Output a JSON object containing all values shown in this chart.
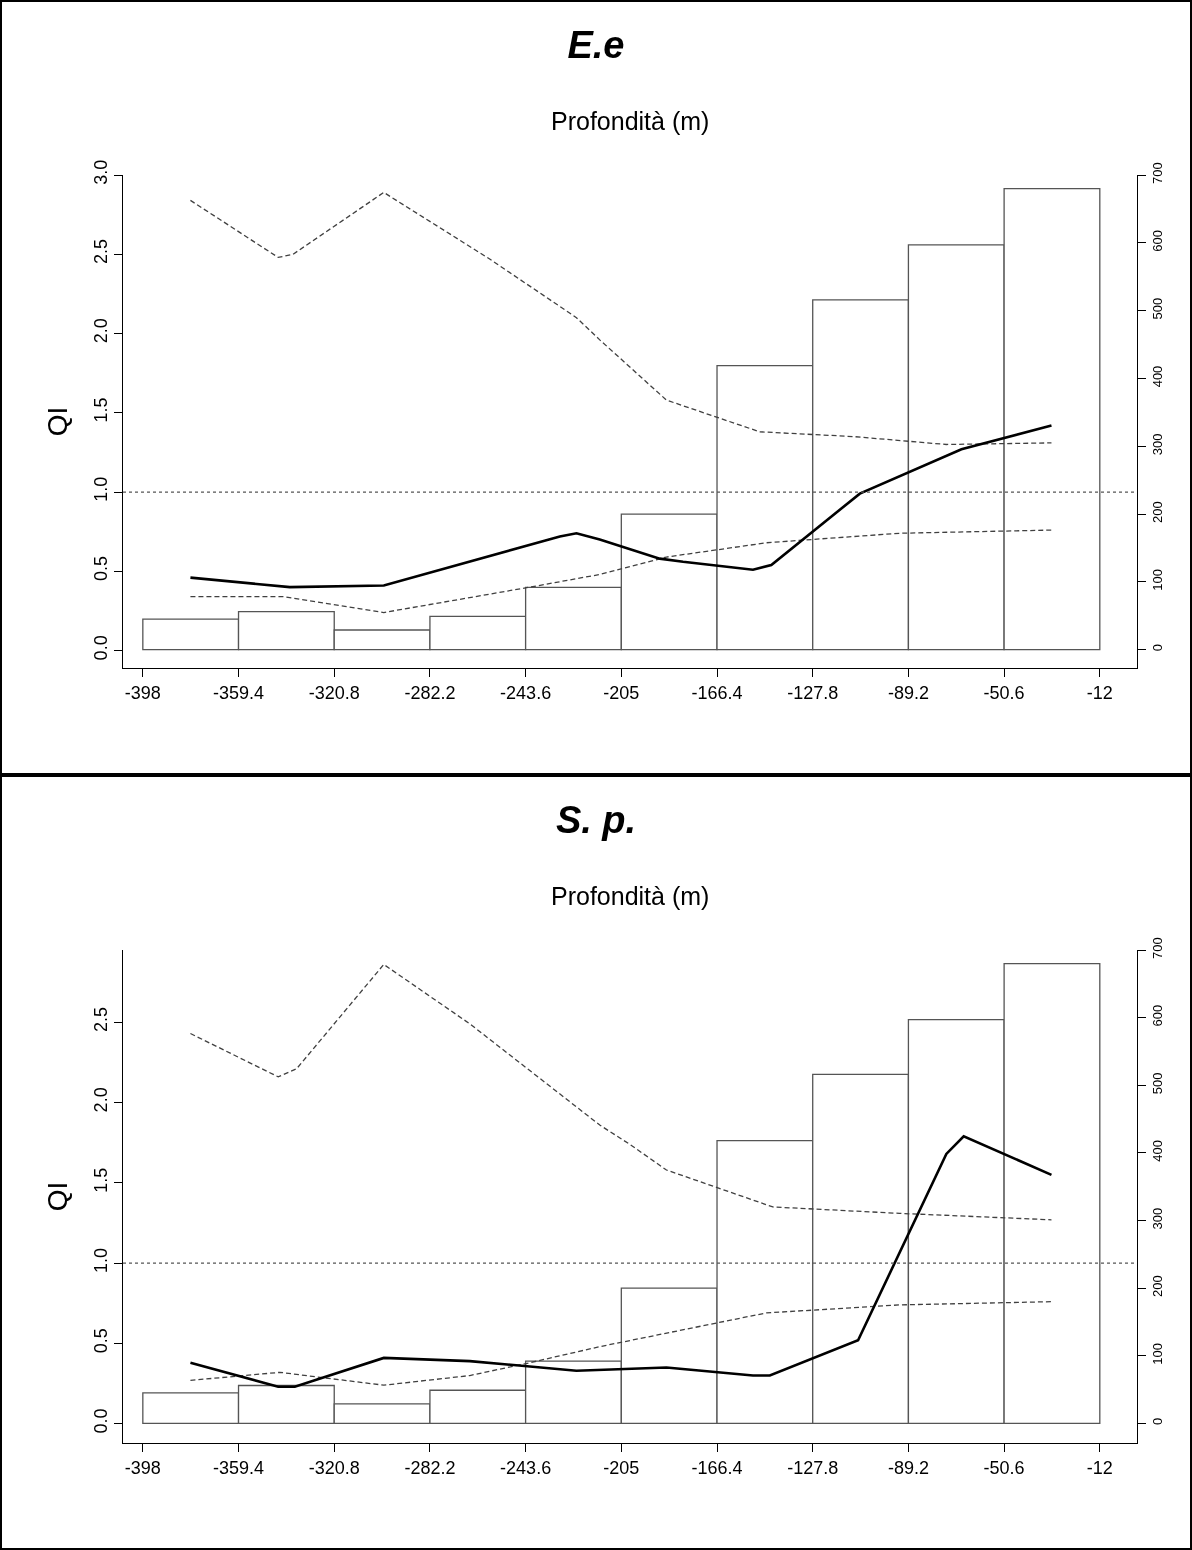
{
  "chart_data": [
    {
      "type": "line",
      "title": "E.e",
      "xlabel": "Profondità (m)",
      "ylabel": "QI",
      "xlim": [
        -406,
        3
      ],
      "xticks": [
        -398,
        -359.4,
        -320.8,
        -282.2,
        -243.6,
        -205,
        -166.4,
        -127.8,
        -89.2,
        -50.6,
        -12
      ],
      "ylim": [
        -0.11,
        3.0
      ],
      "yticks": [
        {
          "value": 0,
          "label": "0.0"
        },
        {
          "value": 0.5,
          "label": "0.5"
        },
        {
          "value": 1,
          "label": "1.0"
        },
        {
          "value": 1.5,
          "label": "1.5"
        },
        {
          "value": 2,
          "label": "2.0"
        },
        {
          "value": 2.5,
          "label": "2.5"
        },
        {
          "value": 3,
          "label": "3.0"
        }
      ],
      "y2lim": [
        -27,
        700
      ],
      "y2ticks": [
        0,
        100,
        200,
        300,
        400,
        500,
        600,
        700
      ],
      "ref_lines": [
        {
          "axis": "y",
          "value": 1,
          "line_style": "dotted",
          "color": "#555555"
        }
      ],
      "series": [
        {
          "type": "histogram",
          "axis": "y2",
          "color": "#ffffff",
          "bins": [
            -398,
            -359.4,
            -320.8,
            -282.2,
            -243.6,
            -205,
            -166.4,
            -127.8,
            -89.2,
            -50.6,
            -12
          ],
          "values": [
            45,
            56,
            29,
            49,
            92,
            200,
            419,
            516,
            597,
            680
          ]
        },
        {
          "line_style": "dashed",
          "color": "#404040",
          "x": [
            -378.8,
            -343.4,
            -337.4,
            -300.8,
            -258.1,
            -223.1,
            -213.7,
            -186.8,
            -149.2,
            -111.5,
            -73.9,
            -31.5
          ],
          "values": [
            2.84,
            2.48,
            2.5,
            2.89,
            2.47,
            2.1,
            1.96,
            1.58,
            1.38,
            1.35,
            1.3,
            1.31
          ]
        },
        {
          "line_style": "dashed",
          "color": "#404040",
          "x": [
            -378.8,
            -341.4,
            -300.8,
            -241.9,
            -213.7,
            -186.8,
            -146.5,
            -92.8,
            -31.5
          ],
          "values": [
            0.34,
            0.34,
            0.24,
            0.4,
            0.48,
            0.59,
            0.68,
            0.74,
            0.76
          ]
        },
        {
          "line_style": "solid",
          "color": "#000000",
          "x": [
            -378.8,
            -338.7,
            -300.8,
            -229.8,
            -223.1,
            -213.7,
            -189.5,
            -180.1,
            -151.9,
            -144.5,
            -108.8,
            -67.8,
            -31.5
          ],
          "values": [
            0.46,
            0.4,
            0.41,
            0.72,
            0.74,
            0.7,
            0.58,
            0.56,
            0.51,
            0.54,
            0.99,
            1.27,
            1.42
          ]
        }
      ]
    },
    {
      "type": "line",
      "title": "S. p.",
      "xlabel": "Profondità (m)",
      "ylabel": "QI",
      "xlim": [
        -406,
        3
      ],
      "xticks": [
        -398,
        -359.4,
        -320.8,
        -282.2,
        -243.6,
        -205,
        -166.4,
        -127.8,
        -89.2,
        -50.6,
        -12
      ],
      "ylim": [
        -0.12,
        2.95
      ],
      "yticks": [
        {
          "value": 0,
          "label": "0.0"
        },
        {
          "value": 0.5,
          "label": "0.5"
        },
        {
          "value": 1,
          "label": "1.0"
        },
        {
          "value": 1.5,
          "label": "1.5"
        },
        {
          "value": 2,
          "label": "2.0"
        },
        {
          "value": 2.5,
          "label": "2.5"
        }
      ],
      "y2lim": [
        -29,
        700
      ],
      "y2ticks": [
        0,
        100,
        200,
        300,
        400,
        500,
        600,
        700
      ],
      "ref_lines": [
        {
          "axis": "y",
          "value": 1,
          "line_style": "dotted",
          "color": "#555555"
        }
      ],
      "series": [
        {
          "type": "histogram",
          "axis": "y2",
          "color": "#ffffff",
          "bins": [
            -398,
            -359.4,
            -320.8,
            -282.2,
            -243.6,
            -205,
            -166.4,
            -127.8,
            -89.2,
            -50.6,
            -12
          ],
          "values": [
            45,
            56,
            29,
            49,
            92,
            200,
            418,
            516,
            597,
            680
          ]
        },
        {
          "line_style": "dashed",
          "color": "#404040",
          "x": [
            -378.8,
            -343.4,
            -336,
            -300.8,
            -266.1,
            -213.7,
            -201.6,
            -186.8,
            -143.9,
            -92.8,
            -31.5
          ],
          "values": [
            2.43,
            2.16,
            2.21,
            2.86,
            2.49,
            1.86,
            1.74,
            1.58,
            1.35,
            1.31,
            1.27
          ]
        },
        {
          "line_style": "dashed",
          "color": "#404040",
          "x": [
            -378.8,
            -342.7,
            -300.8,
            -266.1,
            -241.9,
            -213.7,
            -146.5,
            -92.8,
            -31.5
          ],
          "values": [
            0.27,
            0.32,
            0.24,
            0.3,
            0.38,
            0.48,
            0.69,
            0.74,
            0.76
          ]
        },
        {
          "line_style": "solid",
          "color": "#000000",
          "x": [
            -378.8,
            -343.4,
            -336.7,
            -300.8,
            -266.1,
            -223.1,
            -186.8,
            -151.9,
            -145.1,
            -109.5,
            -73.9,
            -66.9,
            -31.5
          ],
          "values": [
            0.38,
            0.23,
            0.23,
            0.41,
            0.39,
            0.33,
            0.35,
            0.3,
            0.3,
            0.52,
            1.68,
            1.79,
            1.55
          ]
        }
      ]
    }
  ]
}
